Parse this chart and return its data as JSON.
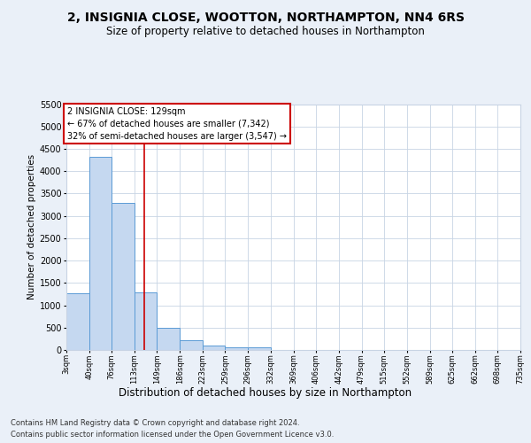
{
  "title1": "2, INSIGNIA CLOSE, WOOTTON, NORTHAMPTON, NN4 6RS",
  "title2": "Size of property relative to detached houses in Northampton",
  "xlabel": "Distribution of detached houses by size in Northampton",
  "ylabel": "Number of detached properties",
  "footer1": "Contains HM Land Registry data © Crown copyright and database right 2024.",
  "footer2": "Contains public sector information licensed under the Open Government Licence v3.0.",
  "annotation_line1": "2 INSIGNIA CLOSE: 129sqm",
  "annotation_line2": "← 67% of detached houses are smaller (7,342)",
  "annotation_line3": "32% of semi-detached houses are larger (3,547) →",
  "bin_edges": [
    3,
    40,
    76,
    113,
    149,
    186,
    223,
    259,
    296,
    332,
    369,
    406,
    442,
    479,
    515,
    552,
    589,
    625,
    662,
    698,
    735
  ],
  "bar_values": [
    1260,
    4330,
    3300,
    1280,
    490,
    215,
    90,
    60,
    50,
    0,
    0,
    0,
    0,
    0,
    0,
    0,
    0,
    0,
    0,
    0
  ],
  "bar_color": "#c5d8f0",
  "bar_edge_color": "#5b9bd5",
  "vline_color": "#cc0000",
  "vline_x": 129,
  "ylim": [
    0,
    5500
  ],
  "yticks": [
    0,
    500,
    1000,
    1500,
    2000,
    2500,
    3000,
    3500,
    4000,
    4500,
    5000,
    5500
  ],
  "bg_color": "#eaf0f8",
  "plot_bg_color": "#ffffff",
  "grid_color": "#c8d4e4",
  "title1_fontsize": 10,
  "title2_fontsize": 8.5,
  "xlabel_fontsize": 8.5,
  "ylabel_fontsize": 7.5,
  "footer_fontsize": 6,
  "annotation_fontsize": 7,
  "annotation_box_color": "#ffffff",
  "annotation_box_edge": "#cc0000"
}
